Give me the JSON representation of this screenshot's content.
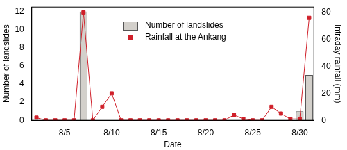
{
  "chart_data": {
    "type": "bar",
    "x_label": "Date",
    "y_label": "Number of landslides",
    "y2_label": "Intraday rainfall (mm)",
    "categories": [
      null,
      null,
      null,
      "8/5",
      null,
      null,
      null,
      null,
      "8/10",
      null,
      null,
      null,
      null,
      "8/15",
      null,
      null,
      null,
      null,
      "8/20",
      null,
      null,
      null,
      null,
      "8/25",
      null,
      null,
      null,
      null,
      "8/30",
      null
    ],
    "series": [
      {
        "name": "Number of landslides",
        "type": "bar",
        "color": "#d3d0cb",
        "axis": "y",
        "values": [
          0,
          0,
          0,
          0,
          0,
          12,
          0,
          0,
          0,
          0,
          0,
          0,
          0,
          0,
          0,
          0,
          0,
          0,
          0,
          0,
          0,
          0,
          0,
          0,
          0,
          0,
          0,
          0,
          1,
          5
        ]
      },
      {
        "name": "Rainfall at the Ankang",
        "type": "line",
        "color": "#d0202a",
        "marker": "square",
        "axis": "y2",
        "values": [
          2,
          0,
          0,
          0,
          0,
          80,
          0,
          10,
          20,
          0,
          0,
          0,
          0,
          0,
          0,
          0,
          0,
          0,
          0,
          0,
          0,
          4,
          1,
          0,
          0,
          10,
          5,
          1,
          1,
          76
        ]
      }
    ],
    "ylim": [
      0,
      12.5
    ],
    "yticks": [
      0,
      2,
      4,
      6,
      8,
      10,
      12
    ],
    "y2lim": [
      0,
      84
    ],
    "y2ticks": [
      0,
      20,
      40,
      60,
      80
    ],
    "grid": false,
    "legend": "top"
  }
}
